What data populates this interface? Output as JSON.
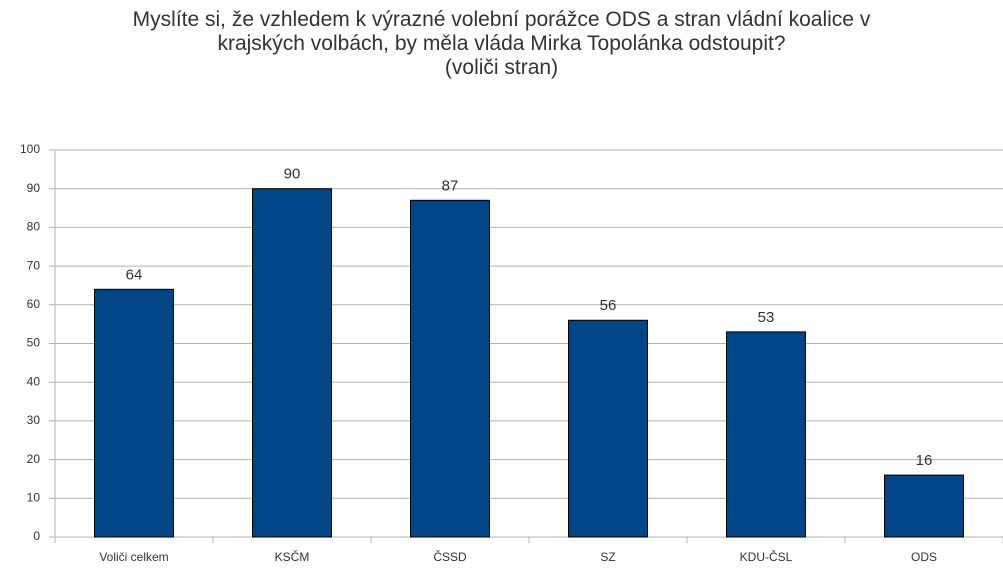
{
  "chart_data": {
    "type": "bar",
    "title": "Myslíte si, že vzhledem k výrazné volební porážce ODS a stran vládní koalice v krajských volbách, by měla vláda Mirka Topolánka odstoupit?",
    "subtitle": "(voliči stran)",
    "categories": [
      "Voliči celkem",
      "KSČM",
      "ČSSD",
      "SZ",
      "KDU-ČSL",
      "ODS"
    ],
    "values": [
      64,
      90,
      87,
      56,
      53,
      16
    ],
    "color": "#004586",
    "ylim": [
      0,
      100
    ],
    "yticks": [
      0,
      10,
      20,
      30,
      40,
      50,
      60,
      70,
      80,
      90,
      100
    ],
    "grid": true
  }
}
